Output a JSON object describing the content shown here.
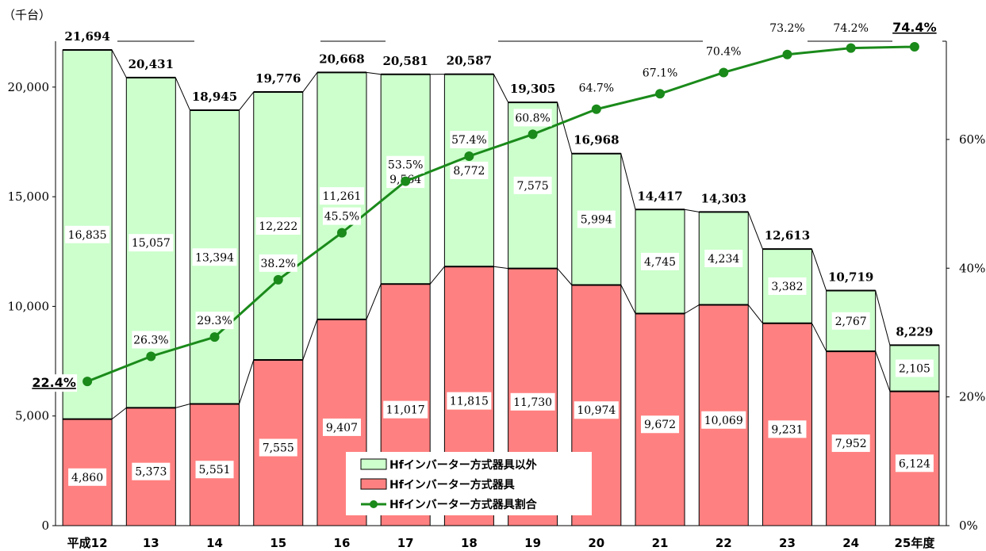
{
  "chart_data": {
    "type": "bar",
    "unit_label": "（千台）",
    "categories": [
      "平成12",
      "13",
      "14",
      "15",
      "16",
      "17",
      "18",
      "19",
      "20",
      "21",
      "22",
      "23",
      "24",
      "25年度"
    ],
    "series": [
      {
        "name": "Hfインバーター方式器具",
        "values": [
          4860,
          5373,
          5551,
          7555,
          9407,
          11017,
          11815,
          11730,
          10974,
          9672,
          10069,
          9231,
          7952,
          6124
        ],
        "color": "#ff8080"
      },
      {
        "name": "Hfインバーター方式器具以外",
        "values": [
          16835,
          15057,
          13394,
          12222,
          11261,
          9564,
          8772,
          7575,
          5994,
          4745,
          4234,
          3382,
          2767,
          2105
        ],
        "color": "#ccffcc"
      }
    ],
    "totals": [
      21694,
      20431,
      18945,
      19776,
      20668,
      20581,
      20587,
      19305,
      16968,
      14417,
      14303,
      12613,
      10719,
      8229
    ],
    "totals_text": [
      "21,694",
      "20,431",
      "18,945",
      "19,776",
      "20,668",
      "20,581",
      "20,587",
      "19,305",
      "16,968",
      "14,417",
      "14,303",
      "12,613",
      "10,719",
      "8,229"
    ],
    "red_text": [
      "4,860",
      "5,373",
      "5,551",
      "7,555",
      "9,407",
      "11,017",
      "11,815",
      "11,730",
      "10,974",
      "9,672",
      "10,069",
      "9,231",
      "7,952",
      "6,124"
    ],
    "green_text": [
      "16,835",
      "15,057",
      "13,394",
      "12,222",
      "11,261",
      "9,564",
      "8,772",
      "7,575",
      "5,994",
      "4,745",
      "4,234",
      "3,382",
      "2,767",
      "2,105"
    ],
    "line": {
      "name": "Hfインバーター方式器具割合",
      "values": [
        22.4,
        26.3,
        29.3,
        38.2,
        45.5,
        53.5,
        57.4,
        60.8,
        64.7,
        67.1,
        70.4,
        73.2,
        74.2,
        74.4
      ],
      "labels": [
        "22.4%",
        "26.3%",
        "29.3%",
        "38.2%",
        "45.5%",
        "53.5%",
        "57.4%",
        "60.8%",
        "64.7%",
        "67.1%",
        "70.4%",
        "73.2%",
        "74.2%",
        "74.4%"
      ],
      "color": "#1a8a1a"
    },
    "y_left": {
      "min": 0,
      "max": 21694,
      "ticks": [
        0,
        5000,
        10000,
        15000,
        20000
      ],
      "tick_labels": [
        "0",
        "5,000",
        "10,000",
        "15,000",
        "20,000"
      ]
    },
    "y_right": {
      "min": 0,
      "max": 74.4,
      "ticks": [
        0,
        20,
        40,
        60
      ],
      "tick_labels": [
        "0%",
        "20%",
        "40%",
        "60%"
      ]
    },
    "legend_position": "bottom-center",
    "grid": false
  }
}
